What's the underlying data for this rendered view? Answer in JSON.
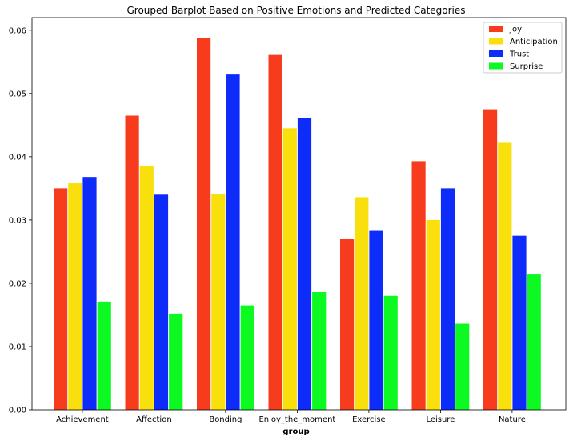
{
  "chart_data": {
    "type": "bar",
    "title": "Grouped Barplot Based on Positive Emotions and Predicted Categories",
    "xlabel": "group",
    "ylabel": "",
    "ylim": [
      0,
      0.062
    ],
    "yticks": [
      "0.00",
      "0.01",
      "0.02",
      "0.03",
      "0.04",
      "0.05",
      "0.06"
    ],
    "categories": [
      "Achievement",
      "Affection",
      "Bonding",
      "Enjoy_the_moment",
      "Exercise",
      "Leisure",
      "Nature"
    ],
    "series": [
      {
        "name": "Joy",
        "color": "#f73b1d",
        "values": [
          0.035,
          0.0465,
          0.0588,
          0.0561,
          0.027,
          0.0393,
          0.0475
        ]
      },
      {
        "name": "Anticipation",
        "color": "#f9e00d",
        "values": [
          0.0358,
          0.0386,
          0.0341,
          0.0445,
          0.0336,
          0.03,
          0.0422
        ]
      },
      {
        "name": "Trust",
        "color": "#0d2cf9",
        "values": [
          0.0368,
          0.034,
          0.053,
          0.0461,
          0.0284,
          0.035,
          0.0275
        ]
      },
      {
        "name": "Surprise",
        "color": "#0df922",
        "values": [
          0.0171,
          0.0152,
          0.0165,
          0.0186,
          0.018,
          0.0136,
          0.0215
        ]
      }
    ],
    "grid": false,
    "legend_position": "top-right"
  }
}
